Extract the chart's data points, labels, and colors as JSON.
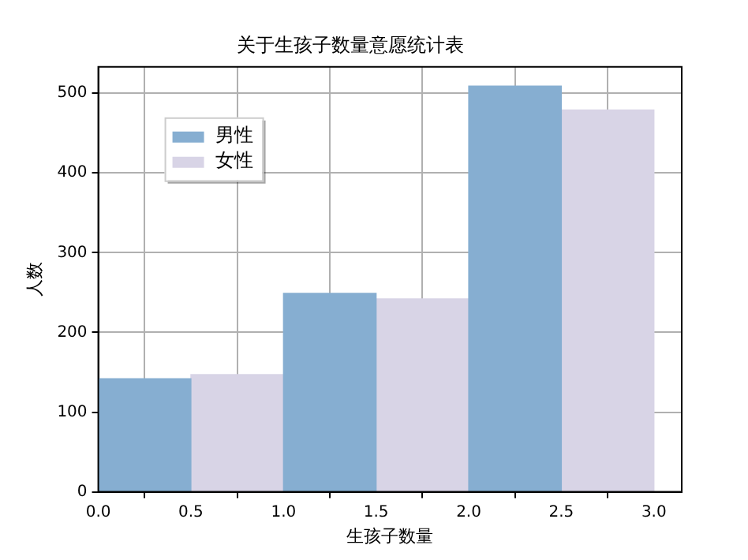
{
  "chart_data": {
    "type": "bar",
    "title": "关于生孩子数量意愿统计表",
    "xlabel": "生孩子数量",
    "ylabel": "人数",
    "xlim": [
      0,
      3.15
    ],
    "xticks": [
      {
        "value": 0,
        "label": "0.0"
      },
      {
        "value": 0.5,
        "label": "0.5"
      },
      {
        "value": 1,
        "label": "1.0"
      },
      {
        "value": 1.5,
        "label": "1.5"
      },
      {
        "value": 2,
        "label": "2.0"
      },
      {
        "value": 2.5,
        "label": "2.5"
      },
      {
        "value": 3,
        "label": "3.0"
      }
    ],
    "ylim": [
      0,
      533
    ],
    "yticks": [
      0,
      100,
      200,
      300,
      400,
      500
    ],
    "grid": true,
    "legend": "top left",
    "series": [
      {
        "name": "男性",
        "color": "#86aed1",
        "x": [
          0.25,
          1.25,
          2.25
        ],
        "values": [
          142,
          249,
          509
        ]
      },
      {
        "name": "女性",
        "color": "#d8d4e6",
        "x": [
          0.75,
          1.75,
          2.75
        ],
        "values": [
          147,
          242,
          479
        ]
      }
    ]
  }
}
